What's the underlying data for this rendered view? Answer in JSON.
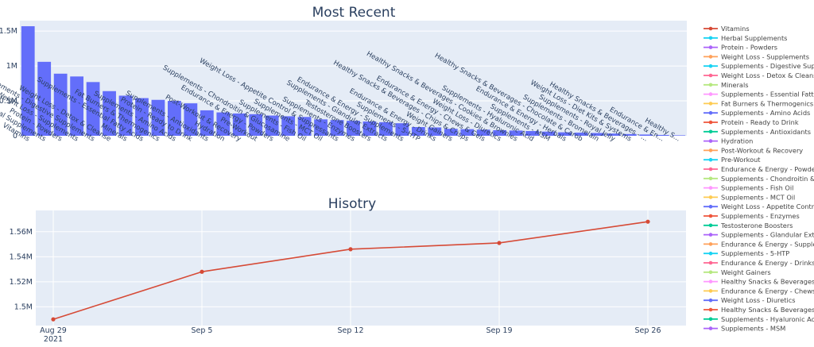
{
  "chart_data": [
    {
      "type": "bar",
      "title": "Most Recent",
      "color": "#636efa",
      "ylim": [
        0,
        1650000
      ],
      "ytick_values": [
        0,
        500000,
        1000000,
        1500000
      ],
      "ytick_labels": [
        "0",
        "0.5M",
        "1M",
        "1.5M"
      ],
      "categories": [
        "Vitamins",
        "Herbal Supplements",
        "Protein - Powders",
        "Weight Loss - Supplements",
        "Supplements - Digestive Supplements",
        "Weight Loss - Detox & Cleanse",
        "Minerals",
        "Supplements - Essential Fatty Acids",
        "Fat Burners & Thermogenics",
        "Supplements - Amino Acids",
        "Protein - Ready to Drink",
        "Supplements - Antioxidants",
        "Hydration",
        "Post-Workout & Recovery",
        "Pre-Workout",
        "Endurance & Energy - Powders",
        "Supplements - Chondroitin & Glucosamine",
        "Supplements - Fish Oil",
        "Supplements - MCT Oil",
        "Weight Loss - Appetite Control & Suppressants",
        "Supplements - Enzymes",
        "Testosterone Boosters",
        "Supplements - Glandular Extracts",
        "Endurance & Energy - Supplements",
        "Supplements - 5-HTP",
        "Endurance & Energy - Drinks",
        "Weight Gainers",
        "Healthy Snacks & Beverages - Chips & Crisps",
        "Endurance & Energy - Chews & Gels",
        "Weight Loss - Diuretics",
        "Healthy Snacks & Beverages - Cookies & Brownies",
        "Supplements - Hyaluronic Acid",
        "Supplements - MSM",
        "Endurance & Energy - Herbals",
        "Healthy Snacks & Beverages - Chocolate & Carob",
        "Supplements - Bromelain",
        "Supplements - Royal Jelly",
        "Weight Loss - Diet Kits & Systems",
        "Healthy Snacks & Beverages - ...",
        "Endurance & En...",
        "Healthy S..."
      ],
      "values": [
        1570000,
        1060000,
        890000,
        850000,
        770000,
        640000,
        575000,
        540000,
        515000,
        500000,
        465000,
        365000,
        335000,
        320000,
        310000,
        290000,
        280000,
        270000,
        235000,
        225000,
        215000,
        205000,
        195000,
        180000,
        125000,
        120000,
        100000,
        95000,
        88000,
        80000,
        75000,
        68000,
        60000,
        50000,
        45000,
        40000,
        32000,
        25000,
        18000,
        12000,
        7000
      ]
    },
    {
      "type": "line",
      "title": "Hisotry",
      "color": "#d64a36",
      "x": [
        "2021-08-29",
        "2021-09-05",
        "2021-09-12",
        "2021-09-19",
        "2021-09-26"
      ],
      "y": [
        1490000,
        1528000,
        1546000,
        1551000,
        1568000
      ],
      "xtick_labels": [
        "Aug 29",
        "Sep 5",
        "Sep 12",
        "Sep 19",
        "Sep 26"
      ],
      "xtick_sublabel": "2021",
      "ylim": [
        1485000,
        1577000
      ],
      "ytick_values": [
        1500000,
        1520000,
        1540000,
        1560000
      ],
      "ytick_labels": [
        "1.5M",
        "1.52M",
        "1.54M",
        "1.56M"
      ]
    }
  ],
  "legend": {
    "placement": "right",
    "items": [
      {
        "label": "Vitamins",
        "color": "#d64a36",
        "active": true
      },
      {
        "label": "Herbal Supplements",
        "color": "#19d3f3"
      },
      {
        "label": "Protein - Powders",
        "color": "#ab63fa"
      },
      {
        "label": "Weight Loss - Supplements",
        "color": "#ffa15a"
      },
      {
        "label": "Supplements - Digestive Suppleme",
        "color": "#19d3f3"
      },
      {
        "label": "Weight Loss - Detox & Cleanse",
        "color": "#ff6692"
      },
      {
        "label": "Minerals",
        "color": "#b6e880"
      },
      {
        "label": "Supplements - Essential Fatty Acid",
        "color": "#ff97ff"
      },
      {
        "label": "Fat Burners & Thermogenics",
        "color": "#fecb52"
      },
      {
        "label": "Supplements - Amino Acids",
        "color": "#636efa"
      },
      {
        "label": "Protein - Ready to Drink",
        "color": "#ef553b"
      },
      {
        "label": "Supplements - Antioxidants",
        "color": "#00cc96"
      },
      {
        "label": "Hydration",
        "color": "#ab63fa"
      },
      {
        "label": "Post-Workout & Recovery",
        "color": "#ffa15a"
      },
      {
        "label": "Pre-Workout",
        "color": "#19d3f3"
      },
      {
        "label": "Endurance & Energy - Powders",
        "color": "#ff6692"
      },
      {
        "label": "Supplements - Chondroitin & Gluc",
        "color": "#b6e880"
      },
      {
        "label": "Supplements - Fish Oil",
        "color": "#ff97ff"
      },
      {
        "label": "Supplements - MCT Oil",
        "color": "#fecb52"
      },
      {
        "label": "Weight Loss - Appetite Control & S",
        "color": "#636efa"
      },
      {
        "label": "Supplements - Enzymes",
        "color": "#ef553b"
      },
      {
        "label": "Testosterone Boosters",
        "color": "#00cc96"
      },
      {
        "label": "Supplements - Glandular Extracts",
        "color": "#ab63fa"
      },
      {
        "label": "Endurance & Energy - Supplement",
        "color": "#ffa15a"
      },
      {
        "label": "Supplements - 5-HTP",
        "color": "#19d3f3"
      },
      {
        "label": "Endurance & Energy - Drinks",
        "color": "#ff6692"
      },
      {
        "label": "Weight Gainers",
        "color": "#b6e880"
      },
      {
        "label": "Healthy Snacks & Beverages - Chip",
        "color": "#ff97ff"
      },
      {
        "label": "Endurance & Energy - Chews & Ge",
        "color": "#fecb52"
      },
      {
        "label": "Weight Loss - Diuretics",
        "color": "#636efa"
      },
      {
        "label": "Healthy Snacks & Beverages - Coo",
        "color": "#ef553b"
      },
      {
        "label": "Supplements - Hyaluronic Acid",
        "color": "#00cc96"
      },
      {
        "label": "Supplements - MSM",
        "color": "#ab63fa"
      }
    ]
  }
}
